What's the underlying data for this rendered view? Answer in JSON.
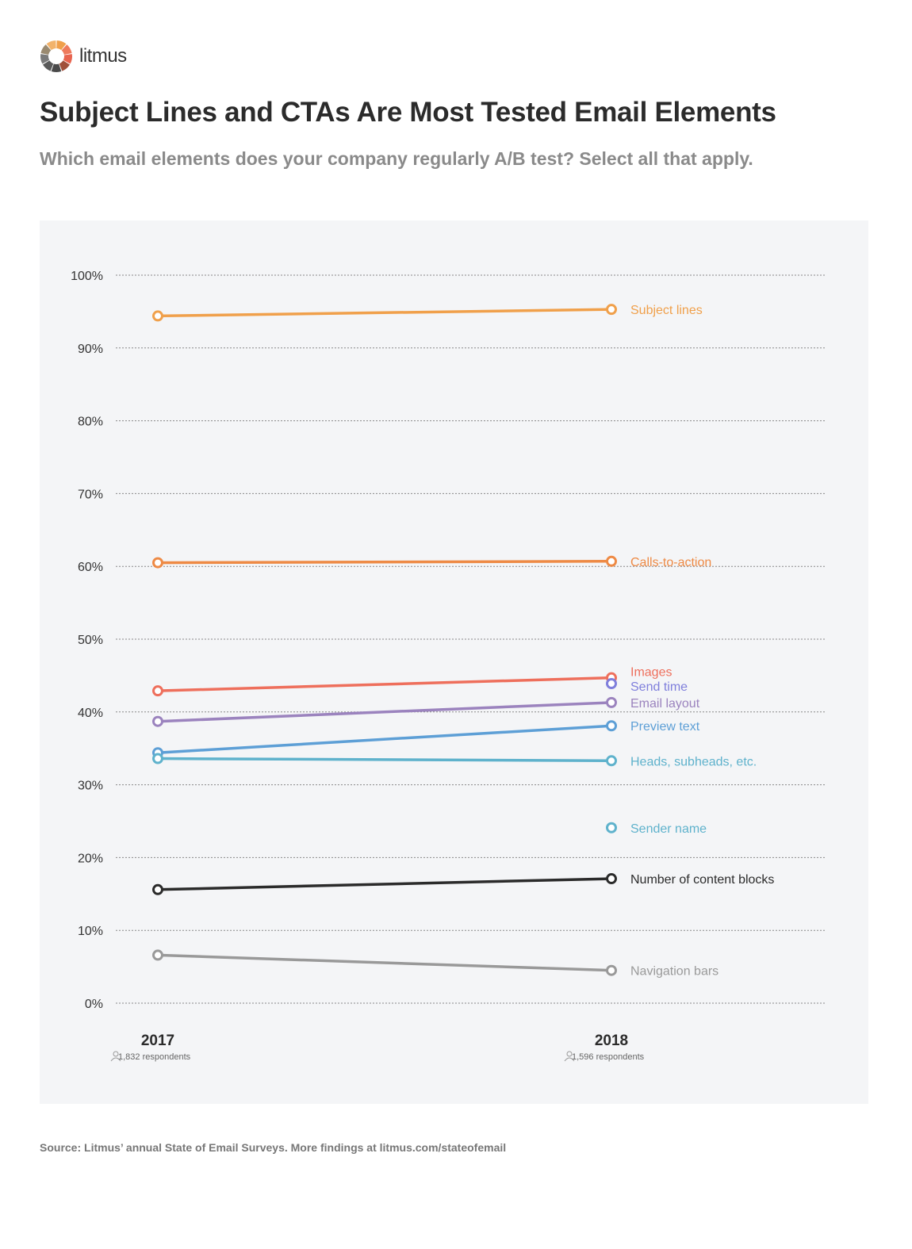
{
  "brand": {
    "name": "litmus",
    "logo_colors": [
      "#f0a04b",
      "#ee7a5c",
      "#e8644f",
      "#a0503a",
      "#4a4a4a",
      "#5a5a5a",
      "#7a7a7a",
      "#9a8a70",
      "#f2b36b"
    ]
  },
  "title": "Subject Lines and CTAs Are Most Tested Email Elements",
  "subtitle": "Which email elements does your company regularly A/B test? Select all that apply.",
  "source": "Source: Litmus’ annual State of Email Surveys. More findings at litmus.com/stateofemail",
  "chart_data": {
    "type": "line",
    "categories": [
      "2017",
      "2018"
    ],
    "category_notes": [
      "1,832 respondents",
      "1,596 respondents"
    ],
    "respondents_icon": "people-icon",
    "ylim": [
      0,
      100
    ],
    "yticks": [
      0,
      10,
      20,
      30,
      40,
      50,
      60,
      70,
      80,
      90,
      100
    ],
    "ytick_labels": [
      "0%",
      "10%",
      "20%",
      "30%",
      "40%",
      "50%",
      "60%",
      "70%",
      "80%",
      "90%",
      "100%"
    ],
    "grid": true,
    "legend": "direct labels at right",
    "series": [
      {
        "name": "Subject lines",
        "color": "#f0a04b",
        "values": [
          94.4,
          95.3
        ]
      },
      {
        "name": "Calls-to-action",
        "color": "#ee8a45",
        "values": [
          60.5,
          60.7
        ]
      },
      {
        "name": "Images",
        "color": "#ee6f5c",
        "values": [
          42.9,
          44.7
        ]
      },
      {
        "name": "Send time",
        "color": "#7f7fdc",
        "values": [
          null,
          43.9
        ]
      },
      {
        "name": "Email layout",
        "color": "#9b83be",
        "values": [
          38.7,
          41.3
        ]
      },
      {
        "name": "Preview text",
        "color": "#5d9fd6",
        "values": [
          34.4,
          38.1
        ]
      },
      {
        "name": "Heads, subheads, etc.",
        "color": "#5fb2cc",
        "values": [
          33.6,
          33.3
        ]
      },
      {
        "name": "Sender name",
        "color": "#5fb2cc",
        "values": [
          null,
          24.1
        ]
      },
      {
        "name": "Number of content blocks",
        "color": "#2b2b2b",
        "values": [
          15.6,
          17.1
        ]
      },
      {
        "name": "Navigation bars",
        "color": "#999999",
        "values": [
          6.6,
          4.5
        ]
      }
    ]
  }
}
